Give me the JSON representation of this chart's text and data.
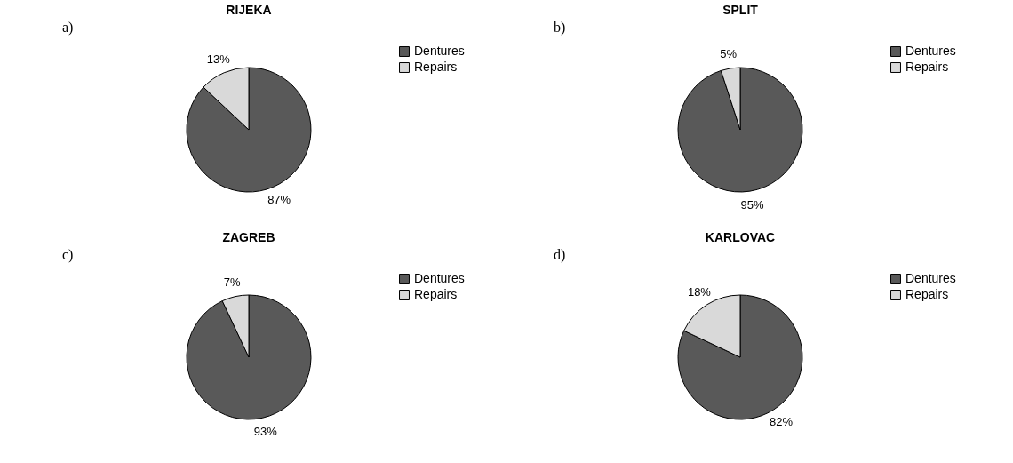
{
  "chart_data": [
    {
      "type": "pie",
      "title": "RIJEKA",
      "categories": [
        "Dentures",
        "Repairs"
      ],
      "values": [
        87,
        13
      ],
      "value_labels": [
        "87%",
        "13%"
      ],
      "colors": [
        "#595959",
        "#d9d9d9"
      ],
      "legend": "right",
      "annotations": [
        "a)"
      ]
    },
    {
      "type": "pie",
      "title": "SPLIT",
      "categories": [
        "Dentures",
        "Repairs"
      ],
      "values": [
        95,
        5
      ],
      "value_labels": [
        "95%",
        "5%"
      ],
      "colors": [
        "#595959",
        "#d9d9d9"
      ],
      "legend": "right",
      "annotations": [
        "b)"
      ]
    },
    {
      "type": "pie",
      "title": "ZAGREB",
      "categories": [
        "Dentures",
        "Repairs"
      ],
      "values": [
        93,
        7
      ],
      "value_labels": [
        "93%",
        "7%"
      ],
      "colors": [
        "#595959",
        "#d9d9d9"
      ],
      "legend": "right",
      "annotations": [
        "c)"
      ]
    },
    {
      "type": "pie",
      "title": "KARLOVAC",
      "categories": [
        "Dentures",
        "Repairs"
      ],
      "values": [
        82,
        18
      ],
      "value_labels": [
        "82%",
        "18%"
      ],
      "colors": [
        "#595959",
        "#d9d9d9"
      ],
      "legend": "right",
      "annotations": [
        "d)"
      ]
    }
  ]
}
